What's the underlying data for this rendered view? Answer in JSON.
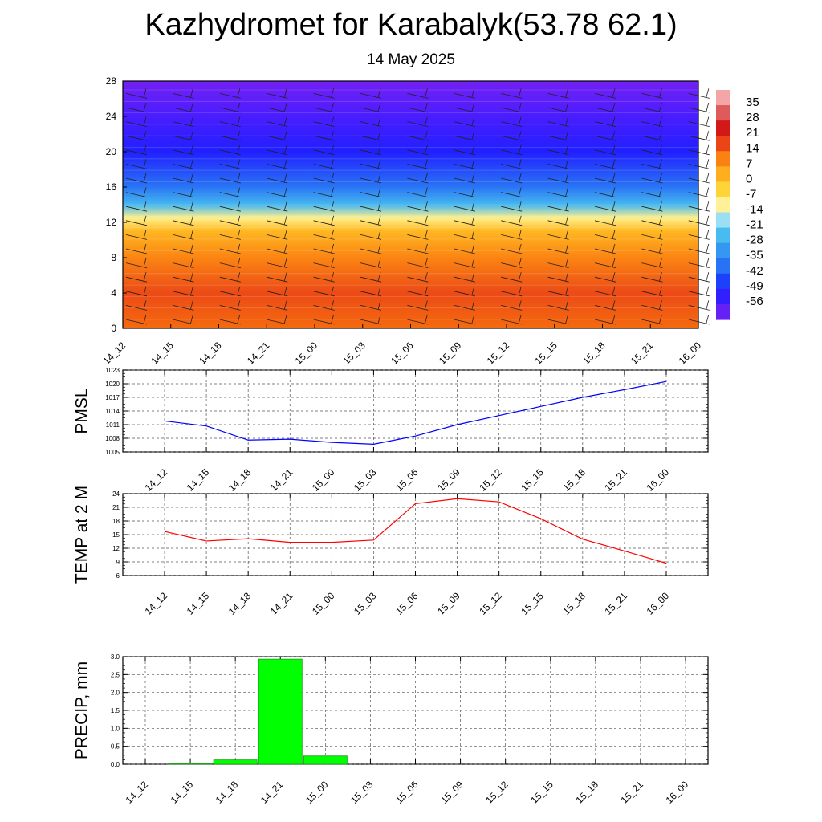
{
  "title": "Kazhydromet for Karabalyk(53.78 62.1)",
  "subtitle": "14 May 2025",
  "colors": {
    "pmsl_line": "#0000ff",
    "temp_line": "#ff0000",
    "precip_bar": "#00ff00",
    "precip_bar_edge": "#1a9a1a"
  },
  "chart_data": [
    {
      "type": "heatmap",
      "title": "",
      "x_tick_labels": [
        "14_12",
        "14_15",
        "14_18",
        "14_21",
        "15_00",
        "15_03",
        "15_06",
        "15_09",
        "15_12",
        "15_15",
        "15_18",
        "15_21",
        "16_00"
      ],
      "y_ticks": [
        0,
        4,
        8,
        12,
        16,
        20,
        24,
        28
      ],
      "ylim": [
        0,
        28
      ],
      "colorbar_labels": [
        "35",
        "28",
        "21",
        "14",
        "7",
        "0",
        "-7",
        "-14",
        "-21",
        "-28",
        "-35",
        "-42",
        "-49",
        "-56"
      ],
      "overlay": "wind barbs",
      "color_bands": [
        {
          "level": 0,
          "value": 14
        },
        {
          "level": 4,
          "value": 17
        },
        {
          "level": 8,
          "value": 10
        },
        {
          "level": 11,
          "value": 2
        },
        {
          "level": 12.5,
          "value": -10
        },
        {
          "level": 14,
          "value": -25
        },
        {
          "level": 16,
          "value": -38
        },
        {
          "level": 20,
          "value": -50
        },
        {
          "level": 24,
          "value": -56
        },
        {
          "level": 28,
          "value": -62
        }
      ]
    },
    {
      "type": "line",
      "ylabel": "PMSL",
      "categories": [
        "14_12",
        "14_15",
        "14_18",
        "14_21",
        "15_00",
        "15_03",
        "15_06",
        "15_09",
        "15_12",
        "15_15",
        "15_18",
        "15_21",
        "16_00"
      ],
      "values": [
        1011.8,
        1010.7,
        1007.6,
        1007.8,
        1007.1,
        1006.7,
        1008.5,
        1011.0,
        1013.0,
        1015.0,
        1017.0,
        1018.7,
        1020.5
      ],
      "y_ticks": [
        "1005",
        "1008",
        "1011",
        "1014",
        "1017",
        "1020",
        "1023"
      ],
      "ylim": [
        1005,
        1023
      ],
      "grid": true
    },
    {
      "type": "line",
      "ylabel": "TEMP at 2 M",
      "categories": [
        "14_12",
        "14_15",
        "14_18",
        "14_21",
        "15_00",
        "15_03",
        "15_06",
        "15_09",
        "15_12",
        "15_15",
        "15_18",
        "15_21",
        "16_00"
      ],
      "values": [
        15.7,
        13.6,
        14.1,
        13.3,
        13.3,
        13.8,
        21.8,
        22.9,
        22.2,
        18.5,
        14.0,
        11.4,
        8.7
      ],
      "y_ticks": [
        "6",
        "9",
        "12",
        "15",
        "18",
        "21",
        "24"
      ],
      "ylim": [
        6,
        24
      ],
      "grid": true
    },
    {
      "type": "bar",
      "ylabel": "PRECIP, mm",
      "categories": [
        "14_12",
        "14_15",
        "14_18",
        "14_21",
        "15_00",
        "15_03",
        "15_06",
        "15_09",
        "15_12",
        "15_15",
        "15_18",
        "15_21",
        "16_00"
      ],
      "values": [
        0,
        0.02,
        0.12,
        2.93,
        0.23,
        0,
        0,
        0,
        0,
        0,
        0,
        0,
        0
      ],
      "y_ticks": [
        "0.0",
        "0.5",
        "1.0",
        "1.5",
        "2.0",
        "2.5",
        "3.0"
      ],
      "ylim": [
        0,
        3.0
      ],
      "grid": true
    }
  ]
}
